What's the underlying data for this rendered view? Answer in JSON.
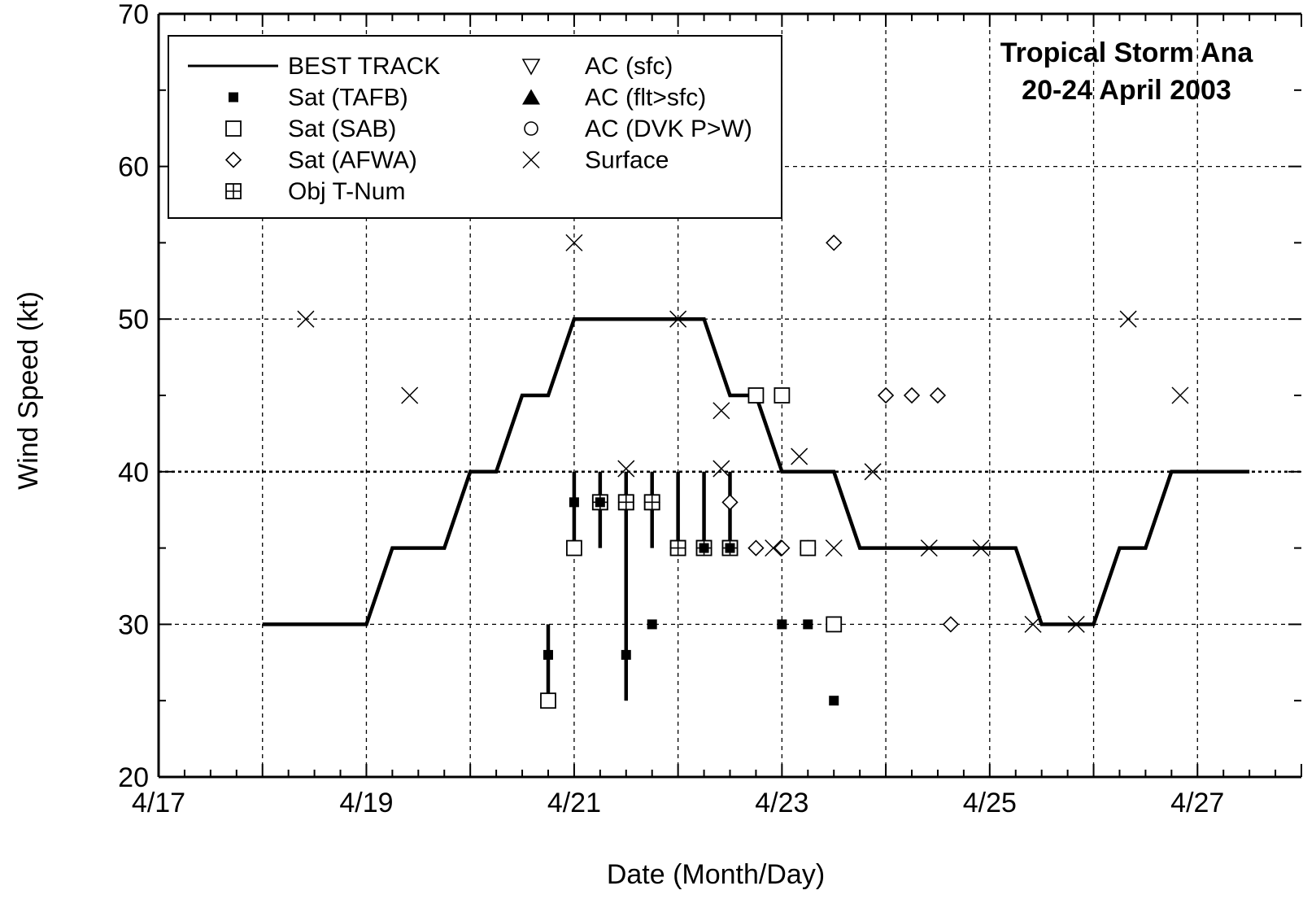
{
  "chart_data": {
    "type": "scatter",
    "title": "Tropical Storm Ana",
    "subtitle": "20-24 April 2003",
    "xlabel": "Date (Month/Day)",
    "ylabel": "Wind Speed (kt)",
    "xlim": [
      "04-17",
      "04-28"
    ],
    "ylim": [
      20,
      70
    ],
    "x_ticks": [
      {
        "date": "04-17",
        "label": "4/17"
      },
      {
        "date": "04-19",
        "label": "4/19"
      },
      {
        "date": "04-21",
        "label": "4/21"
      },
      {
        "date": "04-23",
        "label": "4/23"
      },
      {
        "date": "04-25",
        "label": "4/25"
      },
      {
        "date": "04-27",
        "label": "4/27"
      }
    ],
    "y_ticks": [
      20,
      30,
      40,
      50,
      60,
      70
    ],
    "grid": true,
    "legend_position": "top-left",
    "legend": [
      {
        "label": "BEST TRACK",
        "marker": "line"
      },
      {
        "label": "Sat (TAFB)",
        "marker": "filled-square"
      },
      {
        "label": "Sat (SAB)",
        "marker": "open-square"
      },
      {
        "label": "Sat (AFWA)",
        "marker": "open-diamond"
      },
      {
        "label": "Obj T-Num",
        "marker": "crossed-square"
      },
      {
        "label": "AC (sfc)",
        "marker": "open-down-triangle"
      },
      {
        "label": "AC (flt>sfc)",
        "marker": "filled-up-triangle"
      },
      {
        "label": "AC (DVK P>W)",
        "marker": "open-circle"
      },
      {
        "label": "Surface",
        "marker": "x"
      }
    ],
    "series": [
      {
        "name": "BEST TRACK",
        "type": "line",
        "points": [
          [
            "04-18 00:00",
            30
          ],
          [
            "04-19 00:00",
            30
          ],
          [
            "04-19 06:00",
            35
          ],
          [
            "04-19 18:00",
            35
          ],
          [
            "04-20 00:00",
            40
          ],
          [
            "04-20 06:00",
            40
          ],
          [
            "04-20 12:00",
            45
          ],
          [
            "04-20 18:00",
            45
          ],
          [
            "04-21 00:00",
            50
          ],
          [
            "04-22 06:00",
            50
          ],
          [
            "04-22 12:00",
            45
          ],
          [
            "04-22 18:00",
            45
          ],
          [
            "04-23 00:00",
            40
          ],
          [
            "04-23 12:00",
            40
          ],
          [
            "04-23 18:00",
            35
          ],
          [
            "04-25 06:00",
            35
          ],
          [
            "04-25 12:00",
            30
          ],
          [
            "04-26 00:00",
            30
          ],
          [
            "04-26 06:00",
            35
          ],
          [
            "04-26 12:00",
            35
          ],
          [
            "04-26 18:00",
            40
          ],
          [
            "04-27 12:00",
            40
          ]
        ]
      },
      {
        "name": "Sat (TAFB)",
        "type": "scatter",
        "points": [
          [
            "04-20 18:00",
            28
          ],
          [
            "04-21 00:00",
            38
          ],
          [
            "04-21 06:00",
            38
          ],
          [
            "04-21 12:00",
            28
          ],
          [
            "04-21 18:00",
            30
          ],
          [
            "04-22 06:00",
            35
          ],
          [
            "04-22 12:00",
            35
          ],
          [
            "04-23 00:00",
            30
          ],
          [
            "04-23 06:00",
            30
          ],
          [
            "04-23 12:00",
            25
          ]
        ]
      },
      {
        "name": "Sat (SAB)",
        "type": "scatter",
        "points": [
          [
            "04-20 18:00",
            25
          ],
          [
            "04-21 00:00",
            35
          ],
          [
            "04-21 06:00",
            38
          ],
          [
            "04-21 12:00",
            38
          ],
          [
            "04-21 18:00",
            38
          ],
          [
            "04-22 00:00",
            35
          ],
          [
            "04-22 06:00",
            35
          ],
          [
            "04-22 12:00",
            35
          ],
          [
            "04-22 18:00",
            45
          ],
          [
            "04-23 00:00",
            45
          ],
          [
            "04-23 06:00",
            35
          ],
          [
            "04-23 12:00",
            30
          ]
        ]
      },
      {
        "name": "Sat (AFWA)",
        "type": "scatter",
        "points": [
          [
            "04-21 12:00",
            38
          ],
          [
            "04-21 18:00",
            38
          ],
          [
            "04-22 00:00",
            35
          ],
          [
            "04-22 06:00",
            35
          ],
          [
            "04-22 12:00",
            38
          ],
          [
            "04-22 18:00",
            35
          ],
          [
            "04-23 00:00",
            35
          ],
          [
            "04-23 06:00",
            35
          ],
          [
            "04-23 12:00",
            55
          ],
          [
            "04-24 00:00",
            45
          ],
          [
            "04-24 06:00",
            45
          ],
          [
            "04-24 12:00",
            45
          ],
          [
            "04-24 15:00",
            30
          ]
        ]
      },
      {
        "name": "Obj T-Num",
        "type": "scatter",
        "points": [
          [
            "04-21 06:00",
            38
          ],
          [
            "04-21 12:00",
            38
          ],
          [
            "04-21 18:00",
            38
          ],
          [
            "04-22 00:00",
            35
          ],
          [
            "04-22 06:00",
            35
          ],
          [
            "04-22 12:00",
            35
          ]
        ]
      },
      {
        "name": "Surface",
        "type": "scatter",
        "points": [
          [
            "04-18 10:00",
            50
          ],
          [
            "04-19 10:00",
            45
          ],
          [
            "04-21 00:00",
            55
          ],
          [
            "04-21 12:00",
            40.2
          ],
          [
            "04-22 00:00",
            50
          ],
          [
            "04-22 10:00",
            44
          ],
          [
            "04-22 10:00",
            40.2
          ],
          [
            "04-22 22:00",
            35
          ],
          [
            "04-23 04:00",
            41
          ],
          [
            "04-23 12:00",
            35
          ],
          [
            "04-23 21:00",
            40
          ],
          [
            "04-24 10:00",
            35
          ],
          [
            "04-24 22:00",
            35
          ],
          [
            "04-25 10:00",
            30
          ],
          [
            "04-25 20:00",
            30
          ],
          [
            "04-26 08:00",
            50
          ],
          [
            "04-26 20:00",
            45
          ]
        ]
      }
    ],
    "error_bars": [
      {
        "x": "04-20 18:00",
        "low": 25,
        "high": 30
      },
      {
        "x": "04-21 00:00",
        "low": 35,
        "high": 40
      },
      {
        "x": "04-21 06:00",
        "low": 35,
        "high": 40
      },
      {
        "x": "04-21 12:00",
        "low": 25,
        "high": 40
      },
      {
        "x": "04-21 18:00",
        "low": 35,
        "high": 40
      },
      {
        "x": "04-22 00:00",
        "low": 35,
        "high": 40
      },
      {
        "x": "04-22 06:00",
        "low": 35,
        "high": 40
      },
      {
        "x": "04-22 12:00",
        "low": 35,
        "high": 40
      }
    ]
  }
}
